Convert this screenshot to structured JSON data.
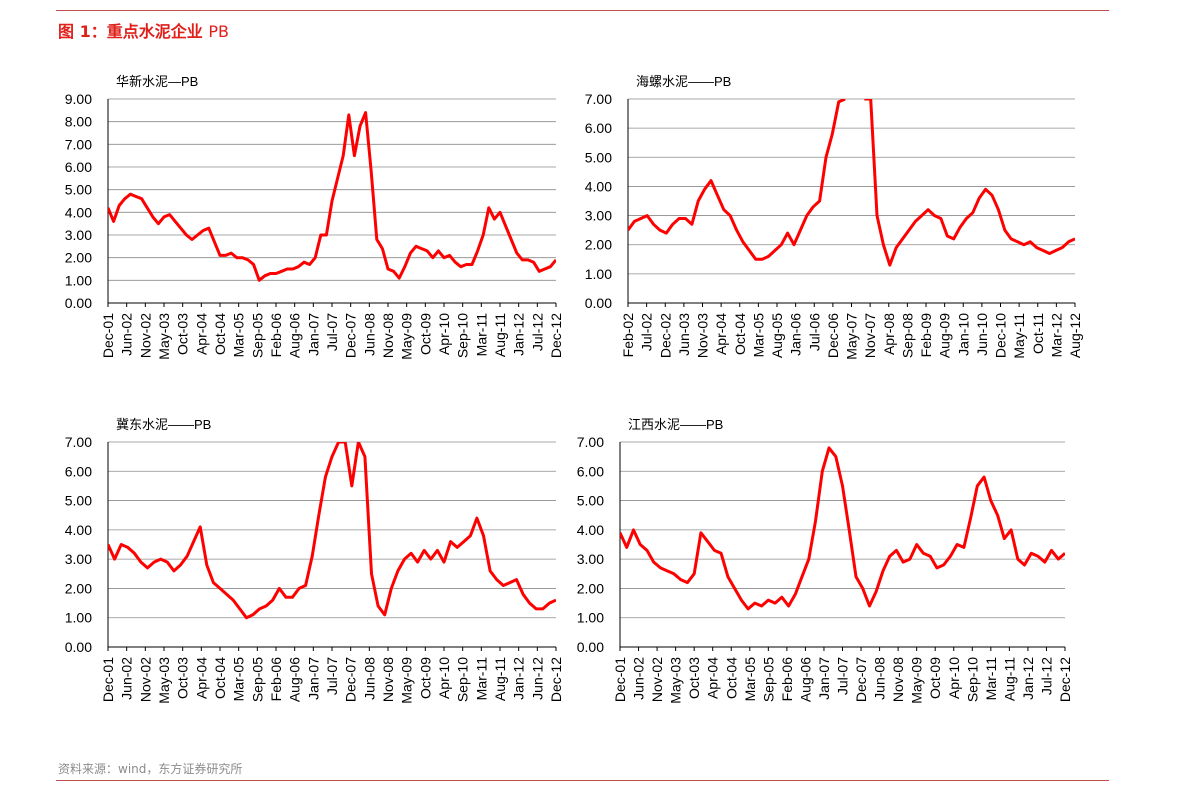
{
  "figure": {
    "prefix": "图 1：",
    "title": "重点水泥企业",
    "title_suffix": "PB",
    "source": "资料来源：wind，东方证券研究所"
  },
  "colors": {
    "line": "#ff0000",
    "title": "#e0201b",
    "rule": "#c0504d"
  },
  "chart_data": [
    {
      "type": "line",
      "title": "华新水泥—PB",
      "ylim": [
        0,
        9
      ],
      "yticks": [
        "0.00",
        "1.00",
        "2.00",
        "3.00",
        "4.00",
        "5.00",
        "6.00",
        "7.00",
        "8.00",
        "9.00"
      ],
      "xticks": [
        "Dec-01",
        "Jun-02",
        "Nov-02",
        "May-03",
        "Oct-03",
        "Apr-04",
        "Oct-04",
        "Mar-05",
        "Sep-05",
        "Feb-06",
        "Aug-06",
        "Jan-07",
        "Jul-07",
        "Dec-07",
        "Jun-08",
        "Nov-08",
        "May-09",
        "Oct-09",
        "Apr-10",
        "Sep-10",
        "Mar-11",
        "Aug-11",
        "Jan-12",
        "Jul-12",
        "Dec-12"
      ],
      "grid": true,
      "series": [
        {
          "values": [
            4.2,
            3.6,
            4.3,
            4.6,
            4.8,
            4.7,
            4.6,
            4.2,
            3.8,
            3.5,
            3.8,
            3.9,
            3.6,
            3.3,
            3.0,
            2.8,
            3.0,
            3.2,
            3.3,
            2.7,
            2.1,
            2.1,
            2.2,
            2.0,
            2.0,
            1.9,
            1.7,
            1.0,
            1.2,
            1.3,
            1.3,
            1.4,
            1.5,
            1.5,
            1.6,
            1.8,
            1.7,
            2.0,
            3.0,
            3.0,
            4.5,
            5.5,
            6.5,
            8.3,
            6.5,
            7.8,
            8.4,
            5.8,
            2.8,
            2.4,
            1.5,
            1.4,
            1.1,
            1.6,
            2.2,
            2.5,
            2.4,
            2.3,
            2.0,
            2.3,
            2.0,
            2.1,
            1.8,
            1.6,
            1.7,
            1.7,
            2.3,
            3.0,
            4.2,
            3.7,
            4.0,
            3.4,
            2.8,
            2.2,
            1.9,
            1.9,
            1.8,
            1.4,
            1.5,
            1.6,
            1.9
          ]
        }
      ]
    },
    {
      "type": "line",
      "title": "海螺水泥——PB",
      "ylim": [
        0,
        7
      ],
      "yticks": [
        "0.00",
        "1.00",
        "2.00",
        "3.00",
        "4.00",
        "5.00",
        "6.00",
        "7.00"
      ],
      "xticks": [
        "Feb-02",
        "Jul-02",
        "Dec-02",
        "Jun-03",
        "Nov-03",
        "Apr-04",
        "Oct-04",
        "Mar-05",
        "Aug-05",
        "Jan-06",
        "Jul-06",
        "Dec-06",
        "May-07",
        "Nov-07",
        "Apr-08",
        "Sep-08",
        "Feb-09",
        "Aug-09",
        "Jan-10",
        "Jun-10",
        "Dec-10",
        "May-11",
        "Oct-11",
        "Mar-12",
        "Aug-12"
      ],
      "grid": true,
      "series": [
        {
          "values": [
            2.5,
            2.8,
            2.9,
            3.0,
            2.7,
            2.5,
            2.4,
            2.7,
            2.9,
            2.9,
            2.7,
            3.5,
            3.9,
            4.2,
            3.7,
            3.2,
            3.0,
            2.5,
            2.1,
            1.8,
            1.5,
            1.5,
            1.6,
            1.8,
            2.0,
            2.4,
            2.0,
            2.5,
            3.0,
            3.3,
            3.5,
            5.0,
            5.8,
            6.9,
            7.0,
            null,
            null,
            7.0,
            7.0,
            3.0,
            2.0,
            1.3,
            1.9,
            2.2,
            2.5,
            2.8,
            3.0,
            3.2,
            3.0,
            2.9,
            2.3,
            2.2,
            2.6,
            2.9,
            3.1,
            3.6,
            3.9,
            3.7,
            3.2,
            2.5,
            2.2,
            2.1,
            2.0,
            2.1,
            1.9,
            1.8,
            1.7,
            1.8,
            1.9,
            2.1,
            2.2
          ]
        }
      ]
    },
    {
      "type": "line",
      "title": "冀东水泥——PB",
      "ylim": [
        0,
        7
      ],
      "yticks": [
        "0.00",
        "1.00",
        "2.00",
        "3.00",
        "4.00",
        "5.00",
        "6.00",
        "7.00"
      ],
      "xticks": [
        "Dec-01",
        "Jun-02",
        "Nov-02",
        "May-03",
        "Oct-03",
        "Apr-04",
        "Oct-04",
        "Mar-05",
        "Sep-05",
        "Feb-06",
        "Aug-06",
        "Jan-07",
        "Jul-07",
        "Dec-07",
        "Jun-08",
        "Nov-08",
        "May-09",
        "Oct-09",
        "Apr-10",
        "Sep-10",
        "Mar-11",
        "Aug-11",
        "Jan-12",
        "Jun-12",
        "Dec-12"
      ],
      "grid": true,
      "series": [
        {
          "values": [
            3.5,
            3.0,
            3.5,
            3.4,
            3.2,
            2.9,
            2.7,
            2.9,
            3.0,
            2.9,
            2.6,
            2.8,
            3.1,
            3.6,
            4.1,
            2.8,
            2.2,
            2.0,
            1.8,
            1.6,
            1.3,
            1.0,
            1.1,
            1.3,
            1.4,
            1.6,
            2.0,
            1.7,
            1.7,
            2.0,
            2.1,
            3.1,
            4.5,
            5.8,
            6.5,
            7.0,
            7.0,
            5.5,
            7.0,
            6.5,
            2.5,
            1.4,
            1.1,
            2.0,
            2.6,
            3.0,
            3.2,
            2.9,
            3.3,
            3.0,
            3.3,
            2.9,
            3.6,
            3.4,
            3.6,
            3.8,
            4.4,
            3.8,
            2.6,
            2.3,
            2.1,
            2.2,
            2.3,
            1.8,
            1.5,
            1.3,
            1.3,
            1.5,
            1.6
          ]
        }
      ]
    },
    {
      "type": "line",
      "title": "江西水泥——PB",
      "ylim": [
        0,
        7
      ],
      "yticks": [
        "0.00",
        "1.00",
        "2.00",
        "3.00",
        "4.00",
        "5.00",
        "6.00",
        "7.00"
      ],
      "xticks": [
        "Dec-01",
        "Jun-02",
        "Nov-02",
        "May-03",
        "Oct-03",
        "Apr-04",
        "Oct-04",
        "Mar-05",
        "Sep-05",
        "Feb-06",
        "Aug-06",
        "Jan-07",
        "Jul-07",
        "Dec-07",
        "Jun-08",
        "Nov-08",
        "May-09",
        "Oct-09",
        "Apr-10",
        "Sep-10",
        "Mar-11",
        "Aug-11",
        "Jan-12",
        "Jul-12",
        "Dec-12"
      ],
      "grid": true,
      "series": [
        {
          "values": [
            3.9,
            3.4,
            4.0,
            3.5,
            3.3,
            2.9,
            2.7,
            2.6,
            2.5,
            2.3,
            2.2,
            2.5,
            3.9,
            3.6,
            3.3,
            3.2,
            2.4,
            2.0,
            1.6,
            1.3,
            1.5,
            1.4,
            1.6,
            1.5,
            1.7,
            1.4,
            1.8,
            2.4,
            3.0,
            4.3,
            6.0,
            6.8,
            6.5,
            5.5,
            4.0,
            2.4,
            2.0,
            1.4,
            1.9,
            2.6,
            3.1,
            3.3,
            2.9,
            3.0,
            3.5,
            3.2,
            3.1,
            2.7,
            2.8,
            3.1,
            3.5,
            3.4,
            4.4,
            5.5,
            5.8,
            5.0,
            4.5,
            3.7,
            4.0,
            3.0,
            2.8,
            3.2,
            3.1,
            2.9,
            3.3,
            3.0,
            3.2
          ]
        }
      ]
    }
  ]
}
